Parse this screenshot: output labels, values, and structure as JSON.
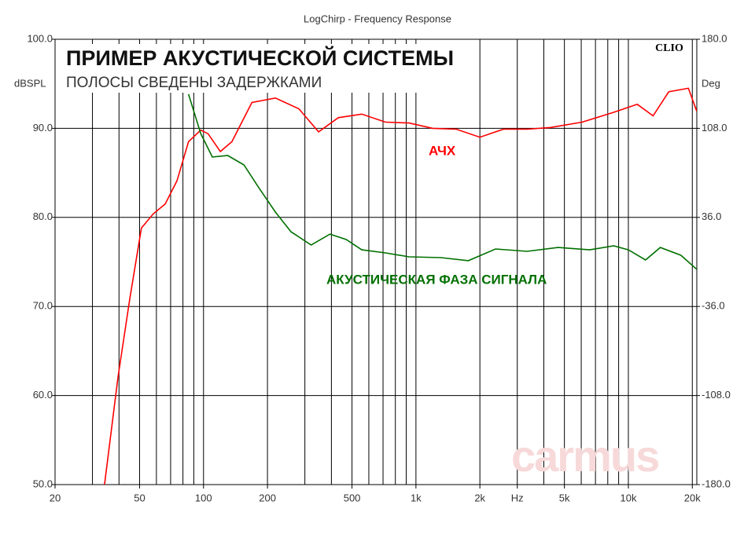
{
  "chart_data": {
    "type": "line",
    "title": "LogChirp - Frequency Response",
    "headline": "ПРИМЕР АКУСТИЧЕСКОЙ СИСТЕМЫ",
    "subheadline": "ПОЛОСЫ СВЕДЕНЫ ЗАДЕРЖКАМИ",
    "brand": "CLIO",
    "watermark": "carmus",
    "ylabel": "dBSPL",
    "y2label": "Deg",
    "xscale": "log",
    "grid": true,
    "xlim": [
      20,
      21000
    ],
    "xticks": [
      20,
      50,
      100,
      200,
      500,
      {
        "value": 1000,
        "label": "1k"
      },
      {
        "value": 2000,
        "label": "2k"
      },
      {
        "value": 3000,
        "label": "Hz"
      },
      {
        "value": 5000,
        "label": "5k"
      },
      {
        "value": 10000,
        "label": "10k"
      },
      {
        "value": 20000,
        "label": "20k"
      }
    ],
    "xminorticks": [
      30,
      40,
      60,
      70,
      80,
      90,
      300,
      400,
      600,
      700,
      800,
      900,
      4000,
      6000,
      7000,
      8000,
      9000
    ],
    "ylim": [
      50,
      100
    ],
    "yticks": [
      {
        "value": 50,
        "label": "50.0"
      },
      {
        "value": 60,
        "label": "60.0"
      },
      {
        "value": 70,
        "label": "70.0"
      },
      {
        "value": 80,
        "label": "80.0"
      },
      {
        "value": 90,
        "label": "90.0"
      },
      {
        "value": 100,
        "label": "100.0"
      }
    ],
    "y2lim": [
      -180,
      180
    ],
    "y2ticks": [
      {
        "value": -180,
        "label": "-180.0"
      },
      {
        "value": -108,
        "label": "-108.0"
      },
      {
        "value": -36,
        "label": "-36.0"
      },
      {
        "value": 36,
        "label": "36.0"
      },
      {
        "value": 108,
        "label": "108.0"
      },
      {
        "value": 180,
        "label": "180.0"
      }
    ],
    "series": [
      {
        "name": "АЧХ",
        "color": "#ff0000",
        "x": [
          34.2,
          39.6,
          45,
          51,
          58,
          66,
          75,
          85,
          97,
          105,
          120,
          136,
          169,
          218,
          281,
          348,
          431,
          556,
          719,
          929,
          1199,
          1549,
          2000,
          2582,
          3335,
          4308,
          6061,
          8528,
          11010,
          13070,
          15490,
          19170,
          21000
        ],
        "values": [
          50,
          62.1,
          70.9,
          78.8,
          80.4,
          81.5,
          84.1,
          88.5,
          89.8,
          89.4,
          87.4,
          88.5,
          92.9,
          93.4,
          92.2,
          89.6,
          91.2,
          91.6,
          90.7,
          90.6,
          90.0,
          89.9,
          89.0,
          89.9,
          89.9,
          90.1,
          90.7,
          91.8,
          92.7,
          91.4,
          94.1,
          94.5,
          91.9
        ]
      },
      {
        "name": "АКУСТИЧЕСКАЯ ФАЗА СИГНАЛА",
        "color": "#007000",
        "axis": "y2",
        "x": [
          85,
          97,
          110,
          130,
          155,
          183,
          218,
          258,
          321,
          394,
          470,
          556,
          719,
          929,
          1310,
          1764,
          2371,
          3335,
          4670,
          6568,
          8528,
          10000,
          12050,
          14140,
          17660,
          21000
        ],
        "values": [
          135.6,
          103.8,
          84.8,
          86,
          78.4,
          59.4,
          40.3,
          24.4,
          13.7,
          22.5,
          18.1,
          9.8,
          7.3,
          4.1,
          3.5,
          1.0,
          10.5,
          8.6,
          11.7,
          9.8,
          13.0,
          9.8,
          1.6,
          11.7,
          5.4,
          -6.0
        ]
      }
    ]
  }
}
